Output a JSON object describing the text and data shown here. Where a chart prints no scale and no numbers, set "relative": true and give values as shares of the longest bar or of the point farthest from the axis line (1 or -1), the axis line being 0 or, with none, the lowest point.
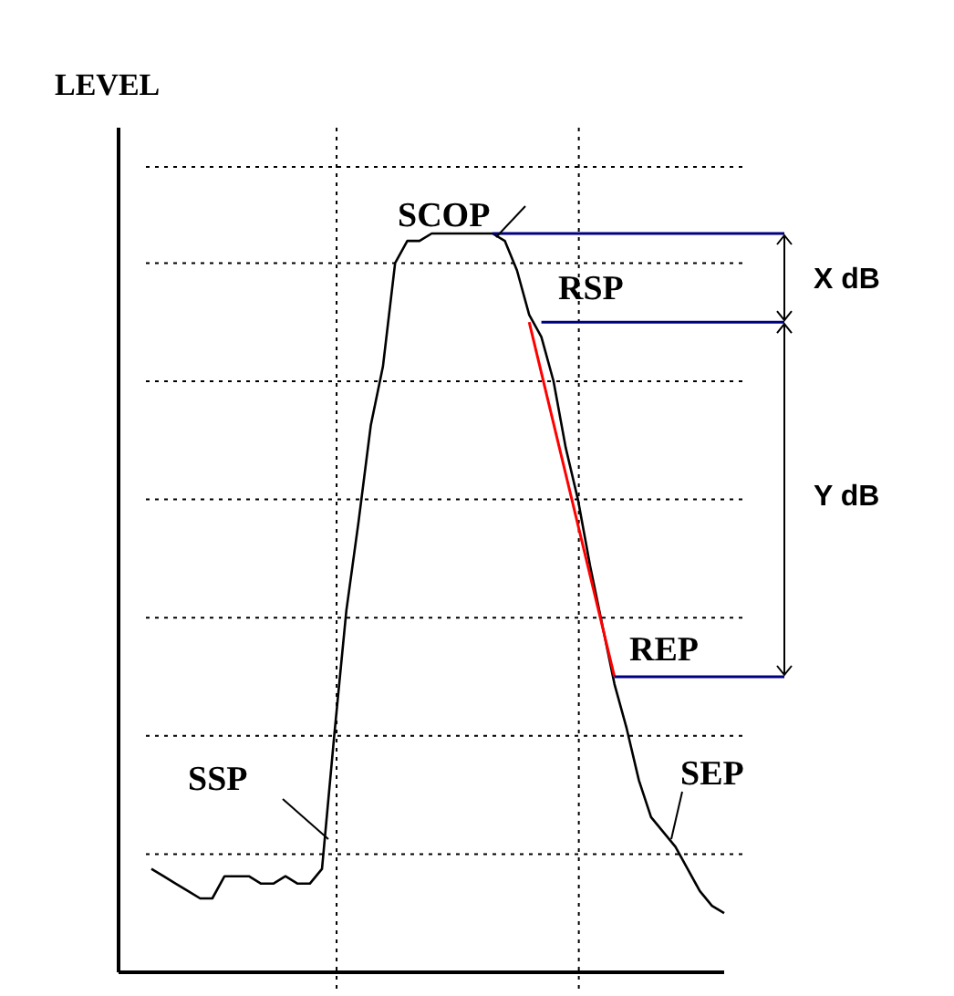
{
  "chart_data": {
    "type": "line",
    "relative": true,
    "ylabel": "LEVEL",
    "grid": true,
    "line_style": "solid",
    "categories": [
      null,
      null,
      null,
      null,
      null,
      null,
      null,
      null,
      null,
      null,
      null,
      null,
      null,
      null,
      null,
      null,
      null,
      null,
      null,
      null,
      null,
      null,
      null,
      null,
      null,
      null,
      null,
      null,
      null,
      null,
      null,
      null,
      null,
      null,
      null,
      null,
      null,
      null,
      null,
      null,
      null,
      null,
      null,
      null,
      null,
      null,
      null,
      null
    ],
    "series": [
      {
        "color": "#000000",
        "values": [
          0.14,
          0.13,
          0.12,
          0.11,
          0.1,
          0.1,
          0.13,
          0.13,
          0.13,
          0.12,
          0.12,
          0.13,
          0.12,
          0.12,
          0.14,
          0.32,
          0.49,
          0.61,
          0.74,
          0.82,
          0.96,
          0.99,
          0.99,
          1.0,
          1.0,
          1.0,
          1.0,
          1.0,
          1.0,
          0.99,
          0.95,
          0.89,
          0.86,
          0.8,
          0.71,
          0.64,
          0.55,
          0.47,
          0.39,
          0.33,
          0.26,
          0.21,
          0.19,
          0.17,
          0.14,
          0.11,
          0.09,
          0.08
        ]
      },
      {
        "color": "#ff0000",
        "values": [
          null,
          null,
          null,
          null,
          null,
          null,
          null,
          null,
          null,
          null,
          null,
          null,
          null,
          null,
          null,
          null,
          null,
          null,
          null,
          null,
          null,
          null,
          null,
          null,
          null,
          null,
          null,
          null,
          null,
          null,
          null,
          0.88,
          null,
          null,
          null,
          null,
          null,
          null,
          0.4,
          null,
          null,
          null,
          null,
          null,
          null,
          null,
          null,
          null
        ]
      }
    ],
    "ref_lines": [
      {
        "axis": "y",
        "value": 1.0,
        "color": "#000080"
      },
      {
        "axis": "y",
        "value": 0.88,
        "color": "#000080"
      },
      {
        "axis": "y",
        "value": 0.4,
        "color": "#000080"
      }
    ],
    "annotations": [
      "SSP",
      "SCOP",
      "RSP",
      "REP",
      "SEP",
      "X dB",
      "Y dB"
    ]
  }
}
